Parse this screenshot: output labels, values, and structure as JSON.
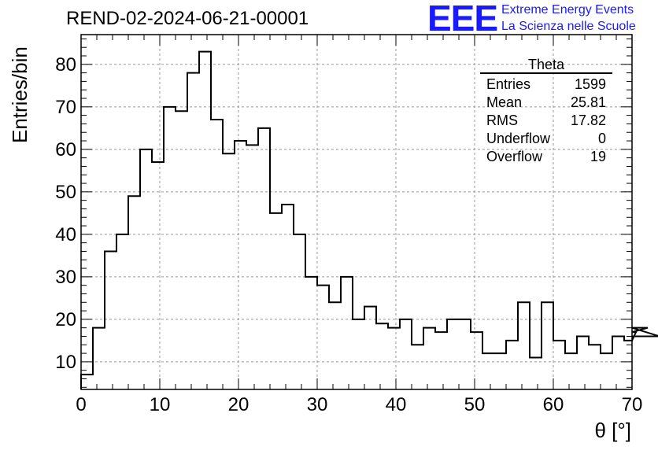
{
  "header": {
    "title": "REND-02-2024-06-21-00001",
    "logo_text": "EEE",
    "logo_line1": "Extreme Energy Events",
    "logo_line2": "La Scienza nelle Scuole"
  },
  "stats_box": {
    "title": "Theta",
    "rows": [
      {
        "label": "Entries",
        "value": "1599"
      },
      {
        "label": "Mean",
        "value": "25.81"
      },
      {
        "label": "RMS",
        "value": "17.82"
      },
      {
        "label": "Underflow",
        "value": "0"
      },
      {
        "label": "Overflow",
        "value": "19"
      }
    ]
  },
  "chart_data": {
    "type": "bar",
    "style": "step-histogram",
    "title": "REND-02-2024-06-21-00001",
    "xlabel": "θ [°]",
    "ylabel": "Entries/bin",
    "xlim": [
      0,
      70
    ],
    "ylim": [
      3.5,
      87
    ],
    "bin_width": 1.5,
    "bin_start": 0,
    "x_ticks": [
      0,
      10,
      20,
      30,
      40,
      50,
      60,
      70
    ],
    "y_ticks": [
      10,
      20,
      30,
      40,
      50,
      60,
      70,
      80
    ],
    "grid": true,
    "legend": "top-right",
    "values": [
      7,
      18,
      36,
      40,
      49,
      60,
      57,
      70,
      69,
      78,
      83,
      67,
      59,
      62,
      61,
      65,
      45,
      47,
      40,
      30,
      28,
      24,
      30,
      20,
      23,
      19,
      18,
      20,
      14,
      18,
      17,
      20,
      20,
      17,
      12,
      12,
      15,
      24,
      11,
      24,
      15,
      12,
      16,
      14,
      12,
      16,
      15,
      17,
      18,
      16
    ],
    "line_color": "#000000",
    "grid_color": "#999999"
  }
}
